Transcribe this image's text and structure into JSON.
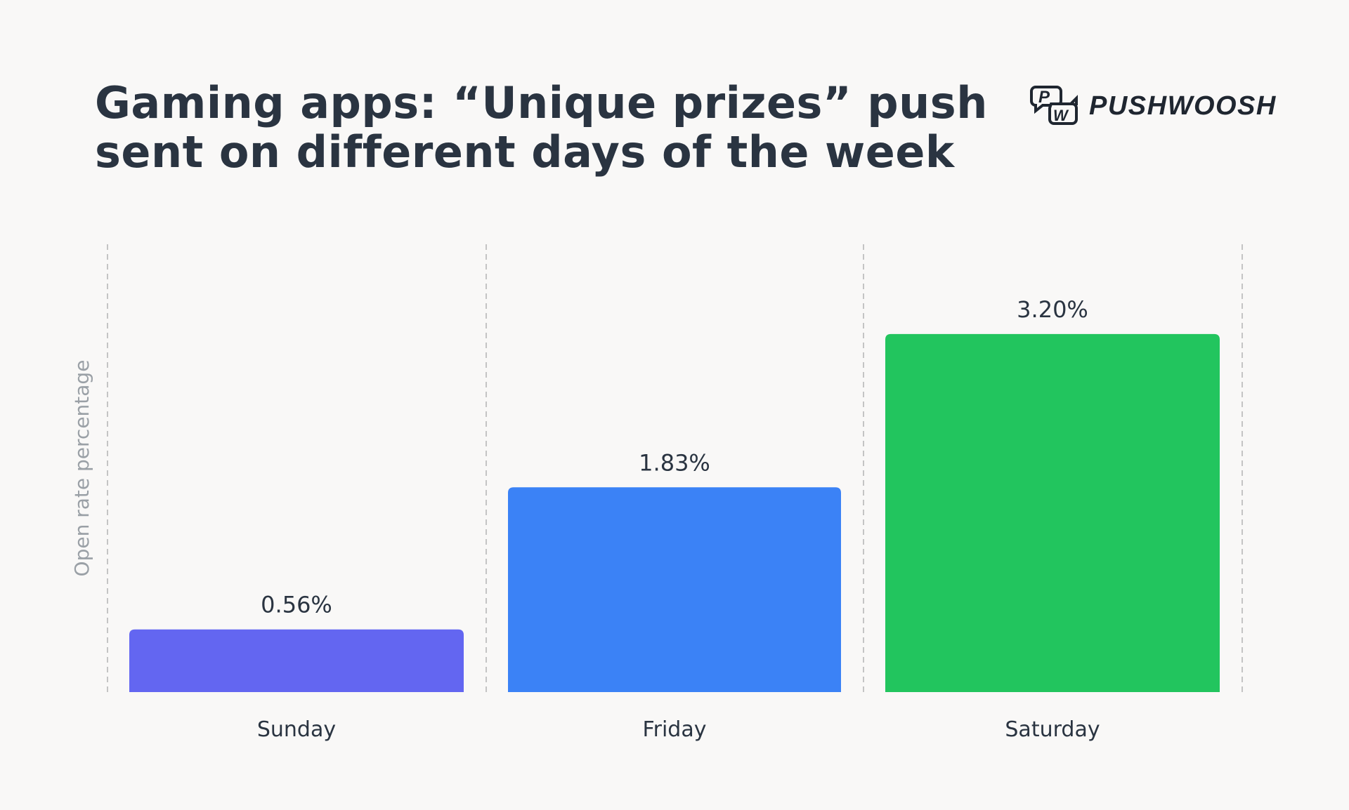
{
  "brand": {
    "name": "PUSHWOOSH",
    "logo_letters": "PW"
  },
  "chart_data": {
    "type": "bar",
    "title_lines": [
      "Gaming apps: “Unique prizes” push",
      "sent on different days of the week"
    ],
    "xlabel": "",
    "ylabel": "Open rate percentage",
    "categories": [
      "Sunday",
      "Friday",
      "Saturday"
    ],
    "values": [
      0.56,
      1.83,
      3.2
    ],
    "value_labels": [
      "0.56%",
      "1.83%",
      "3.20%"
    ],
    "colors": [
      "#6366f1",
      "#3b82f6",
      "#22c55e"
    ],
    "ylim": [
      0,
      3.6
    ],
    "grid": "vertical dashed separators",
    "legend": "none"
  }
}
